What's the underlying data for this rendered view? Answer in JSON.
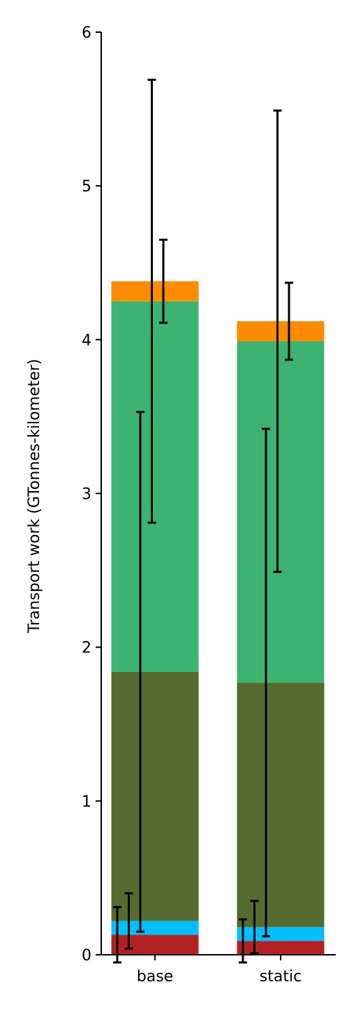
{
  "chart_data": {
    "type": "bar",
    "stacked": true,
    "y_label": "Transport work (GTonnes-kilometer)",
    "categories": [
      "base",
      "static"
    ],
    "series": [
      {
        "color": "#b22222",
        "values": [
          0.13,
          0.09
        ],
        "errors": [
          0.18,
          0.14
        ]
      },
      {
        "color": "#00bfff",
        "values": [
          0.09,
          0.09
        ],
        "errors": [
          0.18,
          0.17
        ]
      },
      {
        "color": "#556b2f",
        "values": [
          1.62,
          1.59
        ],
        "errors": [
          1.69,
          1.65
        ]
      },
      {
        "color": "#3cb371",
        "values": [
          2.41,
          2.22
        ],
        "errors": [
          1.44,
          1.5
        ]
      },
      {
        "color": "#ff8c00",
        "values": [
          0.13,
          0.13
        ],
        "errors": [
          0.27,
          0.25
        ]
      }
    ],
    "ylim": [
      0,
      6
    ],
    "yticks": [
      0,
      1,
      2,
      3,
      4,
      5,
      6
    ]
  }
}
